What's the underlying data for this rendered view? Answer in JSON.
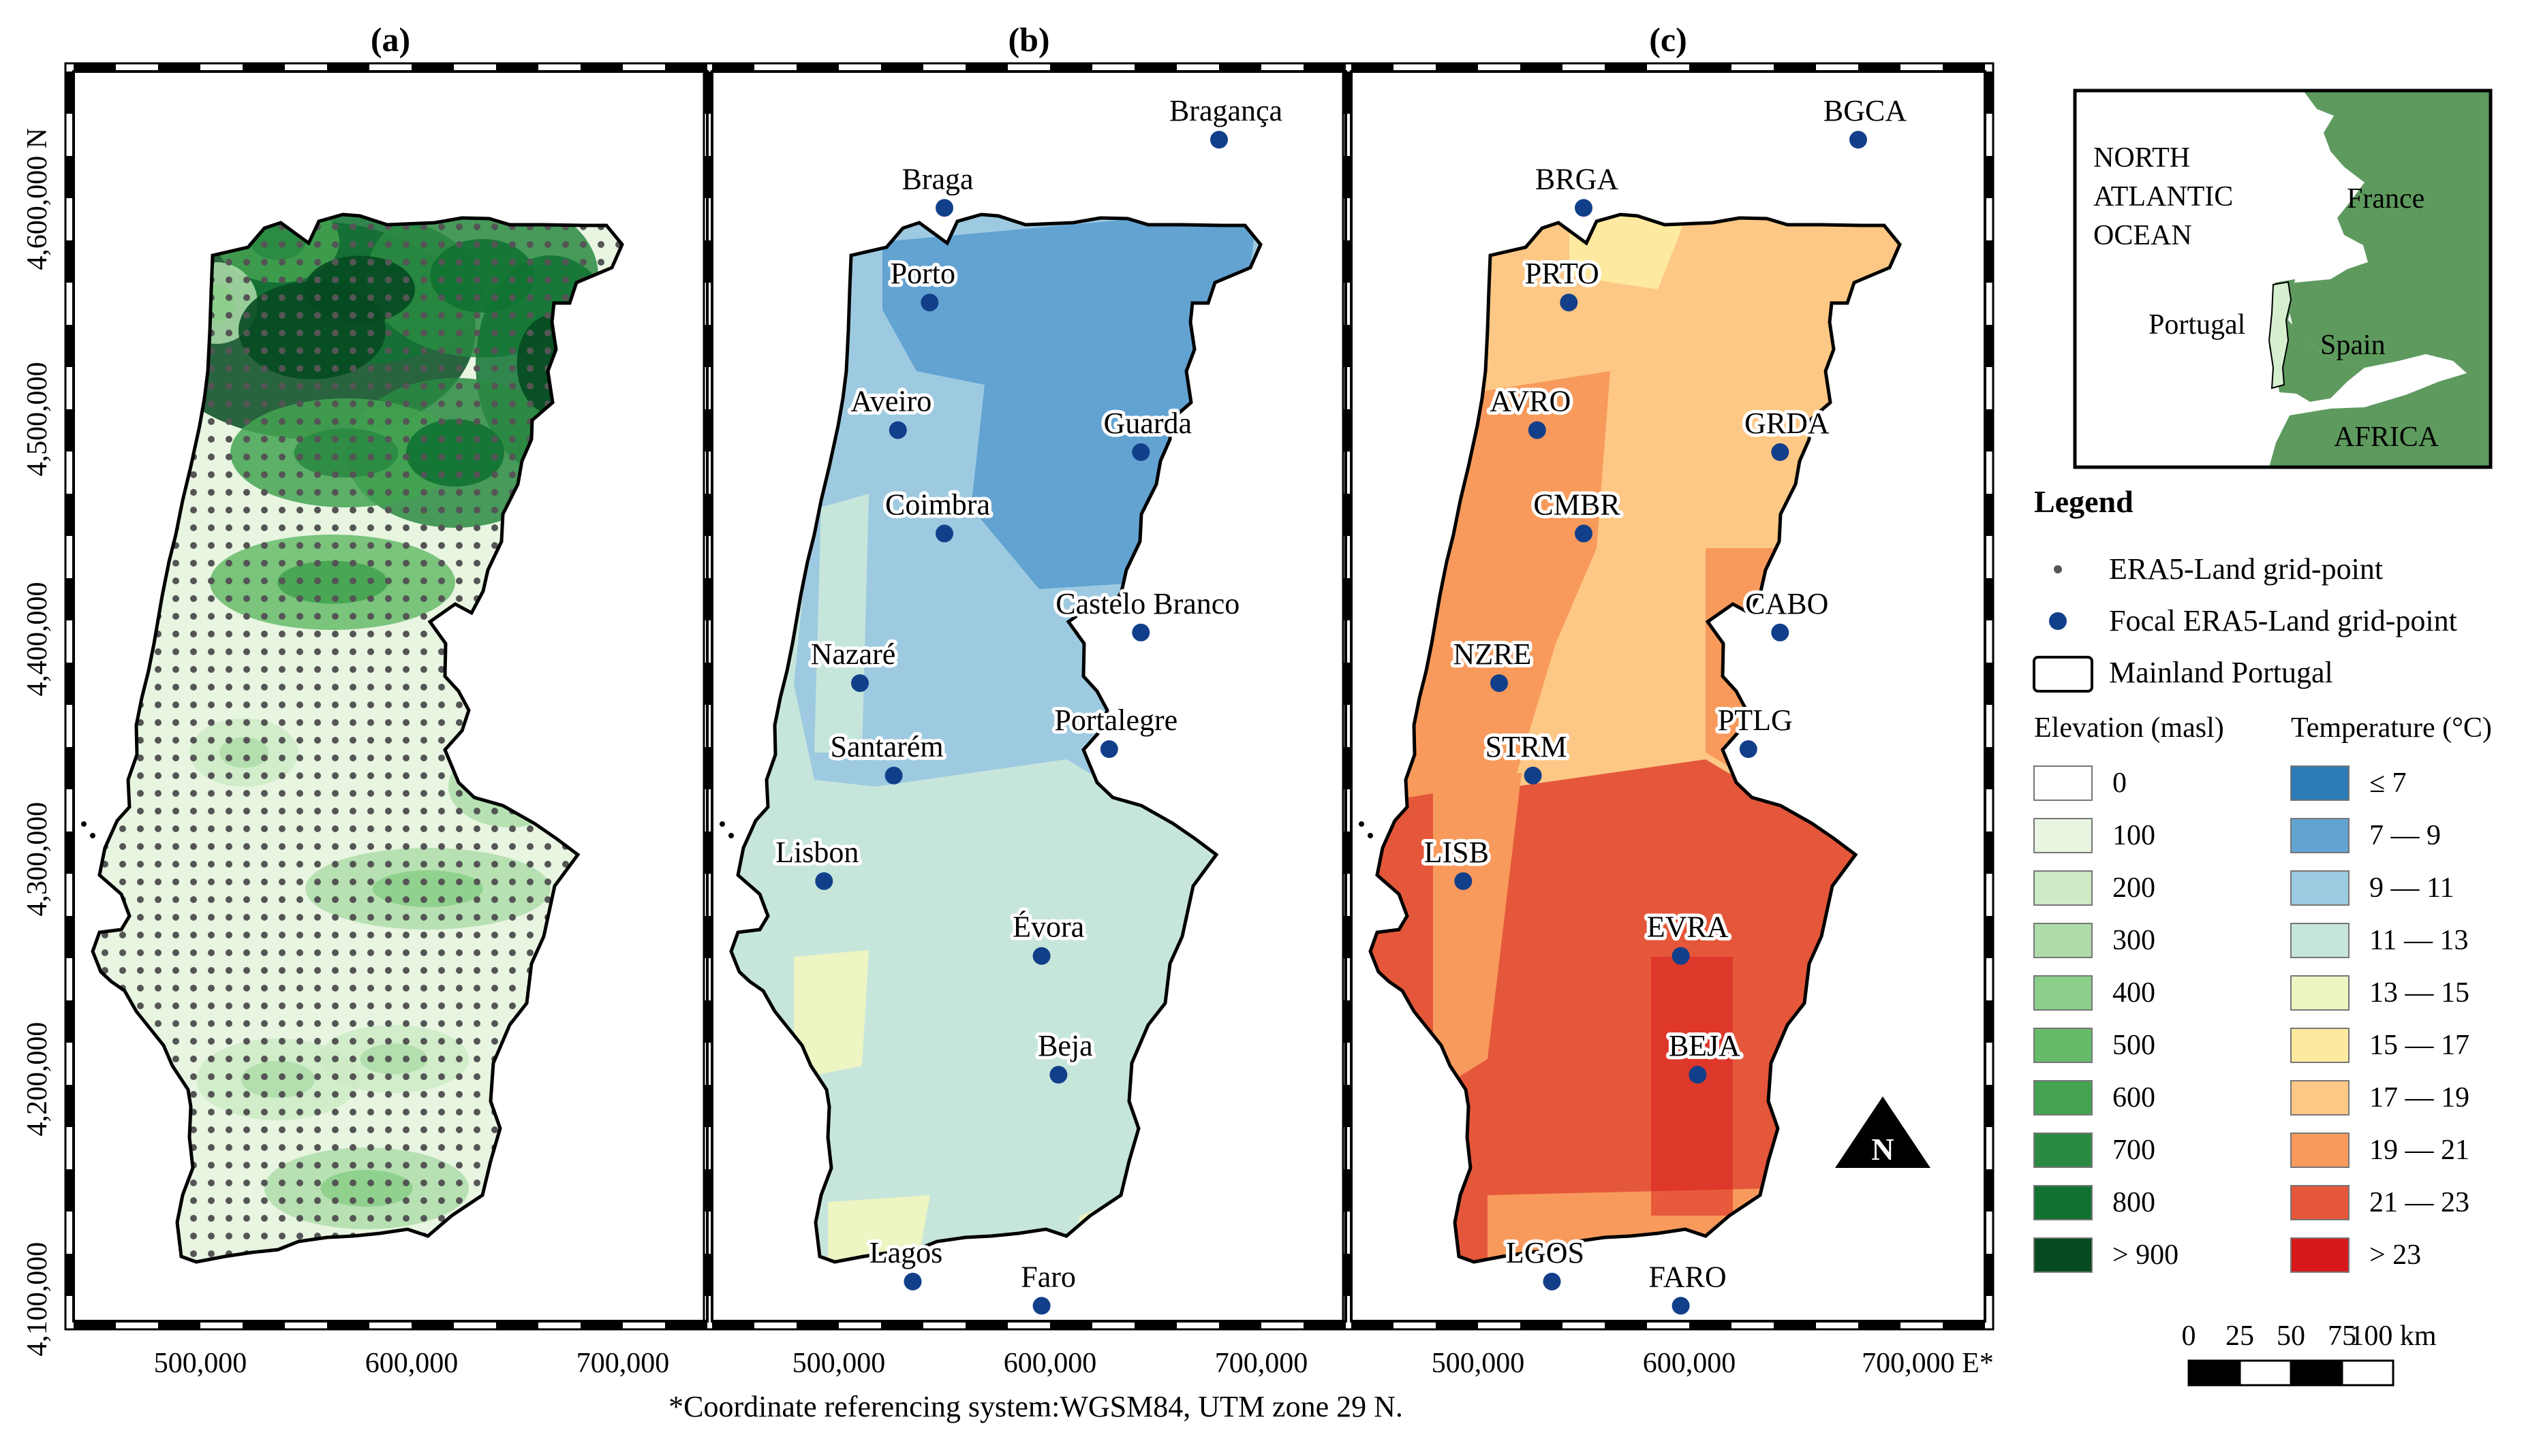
{
  "panels": [
    {
      "id": "a",
      "label": "(a)",
      "kind": "elevation",
      "cities": []
    },
    {
      "id": "b",
      "label": "(b)",
      "kind": "temp_blue",
      "cities": [
        {
          "name": "Bragança",
          "e": 680000,
          "n": 4627000,
          "align": "right"
        },
        {
          "name": "Braga",
          "e": 550000,
          "n": 4596000,
          "align": "left"
        },
        {
          "name": "Porto",
          "e": 543000,
          "n": 4553000,
          "align": "left"
        },
        {
          "name": "Aveiro",
          "e": 528000,
          "n": 4495000,
          "align": "left"
        },
        {
          "name": "Guarda",
          "e": 643000,
          "n": 4485000,
          "align": "right"
        },
        {
          "name": "Coimbra",
          "e": 550000,
          "n": 4448000,
          "align": "left"
        },
        {
          "name": "Castelo Branco",
          "e": 643000,
          "n": 4403000,
          "align": "right"
        },
        {
          "name": "Nazaré",
          "e": 510000,
          "n": 4380000,
          "align": "left"
        },
        {
          "name": "Portalegre",
          "e": 628000,
          "n": 4350000,
          "align": "right"
        },
        {
          "name": "Santarém",
          "e": 526000,
          "n": 4338000,
          "align": "left"
        },
        {
          "name": "Lisbon",
          "e": 493000,
          "n": 4290000,
          "align": "left"
        },
        {
          "name": "Évora",
          "e": 596000,
          "n": 4256000,
          "align": "right"
        },
        {
          "name": "Beja",
          "e": 604000,
          "n": 4202000,
          "align": "right"
        },
        {
          "name": "Lagos",
          "e": 535000,
          "n": 4108000,
          "align": "left"
        },
        {
          "name": "Faro",
          "e": 596000,
          "n": 4097000,
          "align": "right"
        }
      ]
    },
    {
      "id": "c",
      "label": "(c)",
      "kind": "temp_warm",
      "cities": [
        {
          "name": "BGCA",
          "e": 680000,
          "n": 4627000,
          "align": "right"
        },
        {
          "name": "BRGA",
          "e": 550000,
          "n": 4596000,
          "align": "left"
        },
        {
          "name": "PRTO",
          "e": 543000,
          "n": 4553000,
          "align": "left"
        },
        {
          "name": "AVRO",
          "e": 528000,
          "n": 4495000,
          "align": "left"
        },
        {
          "name": "GRDA",
          "e": 643000,
          "n": 4485000,
          "align": "right"
        },
        {
          "name": "CMBR",
          "e": 550000,
          "n": 4448000,
          "align": "left"
        },
        {
          "name": "CABO",
          "e": 643000,
          "n": 4403000,
          "align": "right"
        },
        {
          "name": "NZRE",
          "e": 510000,
          "n": 4380000,
          "align": "left"
        },
        {
          "name": "PTLG",
          "e": 628000,
          "n": 4350000,
          "align": "right"
        },
        {
          "name": "STRM",
          "e": 526000,
          "n": 4338000,
          "align": "left"
        },
        {
          "name": "LISB",
          "e": 493000,
          "n": 4290000,
          "align": "left"
        },
        {
          "name": "EVRA",
          "e": 596000,
          "n": 4256000,
          "align": "right"
        },
        {
          "name": "BEJA",
          "e": 604000,
          "n": 4202000,
          "align": "right"
        },
        {
          "name": "LGOS",
          "e": 535000,
          "n": 4108000,
          "align": "left"
        },
        {
          "name": "FARO",
          "e": 596000,
          "n": 4097000,
          "align": "right"
        }
      ]
    }
  ],
  "axes": {
    "y_ticks": [
      {
        "value": 4600000,
        "label": "4,600,000"
      },
      {
        "value": 4500000,
        "label": "4,500,000"
      },
      {
        "value": 4400000,
        "label": "4,400,000"
      },
      {
        "value": 4300000,
        "label": "4,300,000"
      },
      {
        "value": 4200000,
        "label": "4,200,000"
      },
      {
        "value": 4100000,
        "label": "4,100,000"
      }
    ],
    "y_top_label": "4,600,000 N",
    "x_ticks": [
      {
        "value": 500000,
        "label": "500,000"
      },
      {
        "value": 600000,
        "label": "600,000"
      },
      {
        "value": 700000,
        "label": "700,000"
      }
    ],
    "x_last_label_c": "700,000 E*",
    "footnote": "*Coordinate referencing system:WGSM84, UTM zone 29 N."
  },
  "inset": {
    "labels": {
      "ocean": [
        "NORTH",
        "ATLANTIC",
        "OCEAN"
      ],
      "france": "France",
      "portugal": "Portugal",
      "spain": "Spain",
      "africa": "AFRICA"
    },
    "colors": {
      "sea": "#ffffff",
      "land": "#5e9a5e"
    }
  },
  "legend": {
    "title": "Legend",
    "items": [
      {
        "label": "ERA5-Land grid-point"
      },
      {
        "label": "Focal ERA5-Land grid-point"
      },
      {
        "label": "Mainland Portugal"
      }
    ],
    "elevation": {
      "title": "Elevation (masl)",
      "classes": [
        {
          "label": "0",
          "color": "#ffffff"
        },
        {
          "label": "100",
          "color": "#e8f5e1"
        },
        {
          "label": "200",
          "color": "#cdebc5"
        },
        {
          "label": "300",
          "color": "#aeddaa"
        },
        {
          "label": "400",
          "color": "#8ccf8a"
        },
        {
          "label": "500",
          "color": "#66bb6a"
        },
        {
          "label": "600",
          "color": "#43a351"
        },
        {
          "label": "700",
          "color": "#2a8a42"
        },
        {
          "label": "800",
          "color": "#117232"
        },
        {
          "label": "> 900",
          "color": "#064a21"
        }
      ]
    },
    "temperature": {
      "title": "Temperature (°C)",
      "classes": [
        {
          "label": "≤ 7",
          "color": "#2c7bb6"
        },
        {
          "label": "7 — 9",
          "color": "#62a3d2"
        },
        {
          "label": "9 — 11",
          "color": "#9ecae1"
        },
        {
          "label": "11 — 13",
          "color": "#c7e6db"
        },
        {
          "label": "13 — 15",
          "color": "#edf5c3"
        },
        {
          "label": "15 — 17",
          "color": "#fdeaa0"
        },
        {
          "label": "17 — 19",
          "color": "#fdc885"
        },
        {
          "label": "19 — 21",
          "color": "#f89a5c"
        },
        {
          "label": "21 — 23",
          "color": "#e5573a"
        },
        {
          "label": "> 23",
          "color": "#d7191c"
        }
      ]
    },
    "scale_bar": {
      "labels": [
        "0",
        "25",
        "50",
        "75",
        "100 km"
      ]
    },
    "north_arrow": "N",
    "marker_colors": {
      "grid_point": "#555555",
      "focal_point": "#123f8a",
      "outline": "#000000"
    }
  }
}
